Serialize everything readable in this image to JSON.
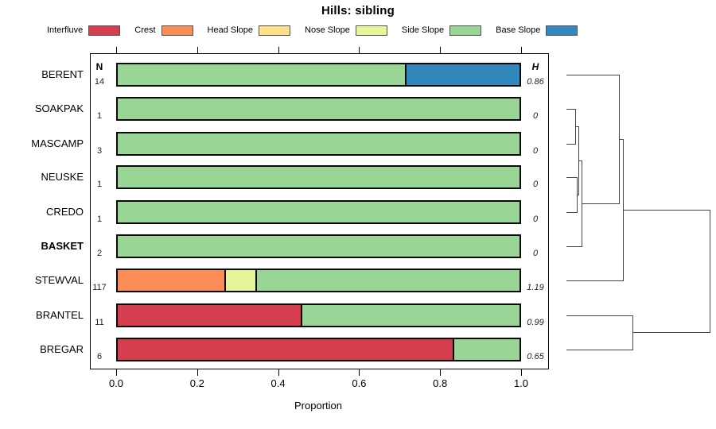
{
  "title": "Hills: sibling",
  "columns": {
    "n_header": "N",
    "h_header": "H"
  },
  "legend": {
    "items": [
      {
        "label": "Interfluve",
        "color": "#d53e4f"
      },
      {
        "label": "Crest",
        "color": "#fc8d59"
      },
      {
        "label": "Head Slope",
        "color": "#fee08b"
      },
      {
        "label": "Nose Slope",
        "color": "#e6f598"
      },
      {
        "label": "Side Slope",
        "color": "#99d594"
      },
      {
        "label": "Base Slope",
        "color": "#3288bd"
      }
    ]
  },
  "xaxis": {
    "label": "Proportion",
    "ticks": [
      "0.0",
      "0.2",
      "0.4",
      "0.6",
      "0.8",
      "1.0"
    ],
    "tick_values": [
      0,
      0.2,
      0.4,
      0.6,
      0.8,
      1.0
    ],
    "range": [
      0,
      1
    ]
  },
  "chart_data": {
    "type": "bar",
    "orientation": "horizontal-stacked",
    "title": "Hills: sibling",
    "xlabel": "Proportion",
    "xlim": [
      0,
      1
    ],
    "grid": false,
    "legend_position": "top",
    "categories": [
      "Interfluve",
      "Crest",
      "Head Slope",
      "Nose Slope",
      "Side Slope",
      "Base Slope"
    ],
    "colors": {
      "Interfluve": "#d53e4f",
      "Crest": "#fc8d59",
      "Head Slope": "#fee08b",
      "Nose Slope": "#e6f598",
      "Side Slope": "#99d594",
      "Base Slope": "#3288bd"
    },
    "rows": [
      {
        "label": "BERENT",
        "bold": false,
        "n": "14",
        "h": "0.86",
        "segments": [
          {
            "category": "Side Slope",
            "value": 0.7143
          },
          {
            "category": "Base Slope",
            "value": 0.2857
          }
        ]
      },
      {
        "label": "SOAKPAK",
        "bold": false,
        "n": "1",
        "h": "0",
        "segments": [
          {
            "category": "Side Slope",
            "value": 1.0
          }
        ]
      },
      {
        "label": "MASCAMP",
        "bold": false,
        "n": "3",
        "h": "0",
        "segments": [
          {
            "category": "Side Slope",
            "value": 1.0
          }
        ]
      },
      {
        "label": "NEUSKE",
        "bold": false,
        "n": "1",
        "h": "0",
        "segments": [
          {
            "category": "Side Slope",
            "value": 1.0
          }
        ]
      },
      {
        "label": "CREDO",
        "bold": false,
        "n": "1",
        "h": "0",
        "segments": [
          {
            "category": "Side Slope",
            "value": 1.0
          }
        ]
      },
      {
        "label": "BASKET",
        "bold": true,
        "n": "2",
        "h": "0",
        "segments": [
          {
            "category": "Side Slope",
            "value": 1.0
          }
        ]
      },
      {
        "label": "STEWVAL",
        "bold": false,
        "n": "117",
        "h": "1.19",
        "segments": [
          {
            "category": "Crest",
            "value": 0.265
          },
          {
            "category": "Nose Slope",
            "value": 0.077
          },
          {
            "category": "Side Slope",
            "value": 0.658
          }
        ]
      },
      {
        "label": "BRANTEL",
        "bold": false,
        "n": "11",
        "h": "0.99",
        "segments": [
          {
            "category": "Interfluve",
            "value": 0.4545
          },
          {
            "category": "Side Slope",
            "value": 0.5455
          }
        ]
      },
      {
        "label": "BREGAR",
        "bold": false,
        "n": "6",
        "h": "0.65",
        "segments": [
          {
            "category": "Interfluve",
            "value": 0.8333
          },
          {
            "category": "Side Slope",
            "value": 0.1667
          }
        ]
      }
    ],
    "dendrogram": {
      "leaves_order": [
        "BERENT",
        "SOAKPAK",
        "MASCAMP",
        "NEUSKE",
        "CREDO",
        "BASKET",
        "STEWVAL",
        "BRANTEL",
        "BREGAR"
      ],
      "structure": "(((BERENT,(((SOAKPAK,MASCAMP),(NEUSKE,CREDO)),BASKET)),STEWVAL),(BRANTEL,BREGAR))",
      "segments": [
        {
          "x1": 712,
          "y1": 94,
          "x2": 778,
          "y2": 94
        },
        {
          "x1": 712,
          "y1": 137,
          "x2": 723,
          "y2": 137
        },
        {
          "x1": 712,
          "y1": 181,
          "x2": 723,
          "y2": 181
        },
        {
          "x1": 712,
          "y1": 223,
          "x2": 725,
          "y2": 223
        },
        {
          "x1": 712,
          "y1": 267,
          "x2": 725,
          "y2": 267
        },
        {
          "x1": 712,
          "y1": 310,
          "x2": 731,
          "y2": 310
        },
        {
          "x1": 712,
          "y1": 353,
          "x2": 783,
          "y2": 353
        },
        {
          "x1": 712,
          "y1": 397,
          "x2": 795,
          "y2": 397
        },
        {
          "x1": 712,
          "y1": 440,
          "x2": 795,
          "y2": 440
        },
        {
          "x1": 723,
          "y1": 137,
          "x2": 723,
          "y2": 181
        },
        {
          "x1": 723,
          "y1": 159,
          "x2": 727,
          "y2": 159
        },
        {
          "x1": 725,
          "y1": 223,
          "x2": 725,
          "y2": 267
        },
        {
          "x1": 725,
          "y1": 245,
          "x2": 727,
          "y2": 245
        },
        {
          "x1": 727,
          "y1": 159,
          "x2": 727,
          "y2": 245
        },
        {
          "x1": 727,
          "y1": 202,
          "x2": 731,
          "y2": 202
        },
        {
          "x1": 731,
          "y1": 202,
          "x2": 731,
          "y2": 310
        },
        {
          "x1": 731,
          "y1": 256,
          "x2": 778,
          "y2": 256
        },
        {
          "x1": 778,
          "y1": 94,
          "x2": 778,
          "y2": 256
        },
        {
          "x1": 778,
          "y1": 175,
          "x2": 783,
          "y2": 175
        },
        {
          "x1": 783,
          "y1": 175,
          "x2": 783,
          "y2": 353
        },
        {
          "x1": 783,
          "y1": 264,
          "x2": 892,
          "y2": 264
        },
        {
          "x1": 795,
          "y1": 397,
          "x2": 795,
          "y2": 440
        },
        {
          "x1": 795,
          "y1": 418,
          "x2": 892,
          "y2": 418
        },
        {
          "x1": 892,
          "y1": 264,
          "x2": 892,
          "y2": 418
        }
      ]
    }
  }
}
